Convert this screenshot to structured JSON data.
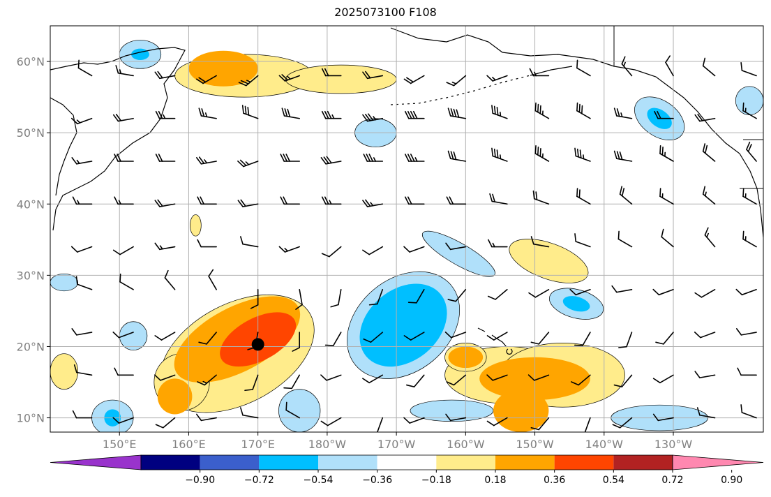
{
  "title": "2025073100 F108",
  "map": {
    "lon_range": [
      140,
      243
    ],
    "lat_range": [
      8,
      65
    ],
    "lat_ticks": [
      {
        "v": 10,
        "label": "10°N"
      },
      {
        "v": 20,
        "label": "20°N"
      },
      {
        "v": 30,
        "label": "30°N"
      },
      {
        "v": 40,
        "label": "40°N"
      },
      {
        "v": 50,
        "label": "50°N"
      },
      {
        "v": 60,
        "label": "60°N"
      }
    ],
    "lon_ticks": [
      {
        "v": 150,
        "label": "150°E"
      },
      {
        "v": 160,
        "label": "160°E"
      },
      {
        "v": 170,
        "label": "170°E"
      },
      {
        "v": 180,
        "label": "180°W"
      },
      {
        "v": 190,
        "label": "170°W"
      },
      {
        "v": 200,
        "label": "160°W"
      },
      {
        "v": 210,
        "label": "150°W"
      },
      {
        "v": 220,
        "label": "140°W"
      },
      {
        "v": 230,
        "label": "130°W"
      }
    ],
    "grid": true,
    "marker": {
      "lon": 170,
      "lat": 20.3
    }
  },
  "colorbar": {
    "ticks": [
      "−0.90",
      "−0.72",
      "−0.54",
      "−0.36",
      "−0.18",
      "0.18",
      "0.36",
      "0.54",
      "0.72",
      "0.90"
    ],
    "colors": [
      "#9933cc",
      "#000080",
      "#3b5fcc",
      "#00bfff",
      "#b0e0fa",
      "#ffffff",
      "#ffec8b",
      "#ffa500",
      "#ff4500",
      "#b22222",
      "#ff88b0"
    ],
    "extend": "both"
  },
  "anomalies": [
    {
      "lon": 167,
      "lat": 21,
      "rx": 10,
      "ry": 4.5,
      "level": 0.36,
      "rot": -28
    },
    {
      "lon": 167,
      "lat": 19,
      "rx": 12,
      "ry": 7,
      "level": 0.18,
      "rot": -28
    },
    {
      "lon": 170,
      "lat": 21,
      "rx": 6,
      "ry": 3,
      "level": 0.54,
      "rot": -28
    },
    {
      "lon": 159,
      "lat": 15,
      "rx": 4,
      "ry": 4,
      "level": 0.18,
      "rot": 0
    },
    {
      "lon": 158,
      "lat": 13,
      "rx": 2.5,
      "ry": 2.5,
      "level": 0.36,
      "rot": 0
    },
    {
      "lon": 168,
      "lat": 58,
      "rx": 10,
      "ry": 3,
      "level": 0.18,
      "rot": 0
    },
    {
      "lon": 165,
      "lat": 59,
      "rx": 5,
      "ry": 2.5,
      "level": 0.36,
      "rot": 0
    },
    {
      "lon": 182,
      "lat": 57.5,
      "rx": 8,
      "ry": 2,
      "level": 0.18,
      "rot": 0
    },
    {
      "lon": 191,
      "lat": 23,
      "rx": 9,
      "ry": 6.5,
      "level": -0.18,
      "rot": -40
    },
    {
      "lon": 191,
      "lat": 23,
      "rx": 7,
      "ry": 5,
      "level": -0.36,
      "rot": -40
    },
    {
      "lon": 199,
      "lat": 33,
      "rx": 6,
      "ry": 1.5,
      "level": -0.18,
      "rot": 30
    },
    {
      "lon": 206,
      "lat": 16,
      "rx": 9,
      "ry": 4,
      "level": 0.18,
      "rot": 0
    },
    {
      "lon": 214,
      "lat": 16,
      "rx": 9,
      "ry": 4.5,
      "level": 0.18,
      "rot": 0
    },
    {
      "lon": 210,
      "lat": 15.5,
      "rx": 8,
      "ry": 3,
      "level": 0.36,
      "rot": 0
    },
    {
      "lon": 208,
      "lat": 11,
      "rx": 4,
      "ry": 3,
      "level": 0.36,
      "rot": 0
    },
    {
      "lon": 212,
      "lat": 32,
      "rx": 6,
      "ry": 2.5,
      "level": 0.18,
      "rot": 20
    },
    {
      "lon": 216,
      "lat": 26,
      "rx": 4,
      "ry": 2,
      "level": -0.18,
      "rot": 15
    },
    {
      "lon": 216,
      "lat": 26,
      "rx": 2,
      "ry": 1,
      "level": -0.36,
      "rot": 15
    },
    {
      "lon": 228,
      "lat": 52,
      "rx": 4,
      "ry": 2.5,
      "level": -0.18,
      "rot": 35
    },
    {
      "lon": 228,
      "lat": 52,
      "rx": 2,
      "ry": 1.2,
      "level": -0.36,
      "rot": 35
    },
    {
      "lon": 187,
      "lat": 50,
      "rx": 3,
      "ry": 2,
      "level": -0.18,
      "rot": 0
    },
    {
      "lon": 153,
      "lat": 61,
      "rx": 3,
      "ry": 2,
      "level": -0.18,
      "rot": 0
    },
    {
      "lon": 153,
      "lat": 61,
      "rx": 1.3,
      "ry": 0.8,
      "level": -0.36,
      "rot": 0
    },
    {
      "lon": 142,
      "lat": 16.5,
      "rx": 2,
      "ry": 2.5,
      "level": 0.18,
      "rot": 0
    },
    {
      "lon": 149,
      "lat": 10,
      "rx": 3,
      "ry": 2.5,
      "level": -0.18,
      "rot": 0
    },
    {
      "lon": 149,
      "lat": 10,
      "rx": 1.2,
      "ry": 1.2,
      "level": -0.36,
      "rot": 0
    },
    {
      "lon": 176,
      "lat": 11,
      "rx": 3,
      "ry": 3,
      "level": -0.18,
      "rot": 0
    },
    {
      "lon": 198,
      "lat": 11,
      "rx": 6,
      "ry": 1.5,
      "level": -0.18,
      "rot": 0
    },
    {
      "lon": 200,
      "lat": 18.5,
      "rx": 2.5,
      "ry": 1.5,
      "level": 0.36,
      "rot": 0
    },
    {
      "lon": 200,
      "lat": 18.5,
      "rx": 3,
      "ry": 2,
      "level": 0.18,
      "rot": 0
    },
    {
      "lon": 228,
      "lat": 10,
      "rx": 7,
      "ry": 1.8,
      "level": -0.18,
      "rot": 0
    },
    {
      "lon": 152,
      "lat": 21.5,
      "rx": 2,
      "ry": 2,
      "level": -0.18,
      "rot": 0
    },
    {
      "lon": 142,
      "lat": 29,
      "rx": 2,
      "ry": 1.2,
      "level": -0.18,
      "rot": 0
    },
    {
      "lon": 241,
      "lat": 54.5,
      "rx": 2,
      "ry": 2,
      "level": -0.18,
      "rot": 0
    },
    {
      "lon": 161,
      "lat": 37,
      "rx": 0.8,
      "ry": 1.5,
      "level": 0.18,
      "rot": 0
    }
  ],
  "wind_barbs": {
    "lon_start": 146,
    "lon_step": 6,
    "lon_count": 17,
    "lat_start": 10,
    "lat_step": 6,
    "lat_count": 9,
    "directions_deg": [
      [
        270,
        250,
        230,
        260,
        280,
        300,
        240,
        200,
        250,
        260,
        240,
        220,
        200,
        230,
        260,
        280,
        290
      ],
      [
        280,
        270,
        250,
        230,
        200,
        210,
        250,
        240,
        220,
        230,
        250,
        250,
        230,
        220,
        240,
        260,
        270
      ],
      [
        260,
        250,
        240,
        220,
        190,
        180,
        210,
        230,
        240,
        250,
        240,
        220,
        210,
        200,
        220,
        250,
        260
      ],
      [
        290,
        300,
        320,
        330,
        180,
        170,
        190,
        200,
        210,
        220,
        230,
        240,
        250,
        260,
        250,
        240,
        250
      ],
      [
        250,
        240,
        260,
        270,
        280,
        250,
        230,
        240,
        250,
        260,
        270,
        280,
        290,
        300,
        310,
        320,
        300
      ],
      [
        270,
        270,
        260,
        270,
        260,
        270,
        270,
        260,
        270,
        270,
        280,
        290,
        300,
        310,
        300,
        310,
        300
      ],
      [
        260,
        270,
        270,
        260,
        250,
        270,
        260,
        270,
        270,
        280,
        290,
        300,
        290,
        280,
        300,
        310,
        320
      ],
      [
        250,
        260,
        270,
        280,
        290,
        280,
        270,
        260,
        270,
        280,
        290,
        300,
        300,
        280,
        270,
        260,
        300
      ],
      [
        300,
        280,
        260,
        240,
        230,
        250,
        270,
        260,
        240,
        230,
        250,
        270,
        300,
        320,
        330,
        310,
        290
      ]
    ],
    "speeds": [
      [
        10,
        10,
        10,
        10,
        10,
        10,
        10,
        10,
        10,
        10,
        10,
        10,
        10,
        10,
        10,
        10,
        10
      ],
      [
        10,
        10,
        10,
        15,
        10,
        10,
        10,
        10,
        10,
        10,
        10,
        10,
        10,
        10,
        10,
        10,
        10
      ],
      [
        10,
        10,
        10,
        10,
        10,
        10,
        10,
        10,
        10,
        10,
        10,
        10,
        10,
        10,
        10,
        10,
        10
      ],
      [
        10,
        10,
        10,
        10,
        10,
        10,
        10,
        10,
        10,
        10,
        10,
        10,
        10,
        10,
        10,
        10,
        10
      ],
      [
        10,
        10,
        15,
        10,
        10,
        15,
        10,
        10,
        10,
        10,
        15,
        10,
        10,
        10,
        10,
        15,
        15
      ],
      [
        15,
        15,
        20,
        20,
        20,
        20,
        25,
        25,
        20,
        20,
        20,
        20,
        20,
        20,
        15,
        15,
        15
      ],
      [
        15,
        20,
        20,
        25,
        25,
        30,
        30,
        35,
        35,
        30,
        35,
        35,
        35,
        30,
        25,
        20,
        20
      ],
      [
        15,
        20,
        25,
        25,
        30,
        30,
        35,
        35,
        40,
        40,
        35,
        35,
        30,
        25,
        20,
        20,
        15
      ],
      [
        10,
        15,
        20,
        20,
        25,
        25,
        20,
        20,
        20,
        15,
        15,
        15,
        10,
        15,
        10,
        10,
        10
      ]
    ]
  }
}
